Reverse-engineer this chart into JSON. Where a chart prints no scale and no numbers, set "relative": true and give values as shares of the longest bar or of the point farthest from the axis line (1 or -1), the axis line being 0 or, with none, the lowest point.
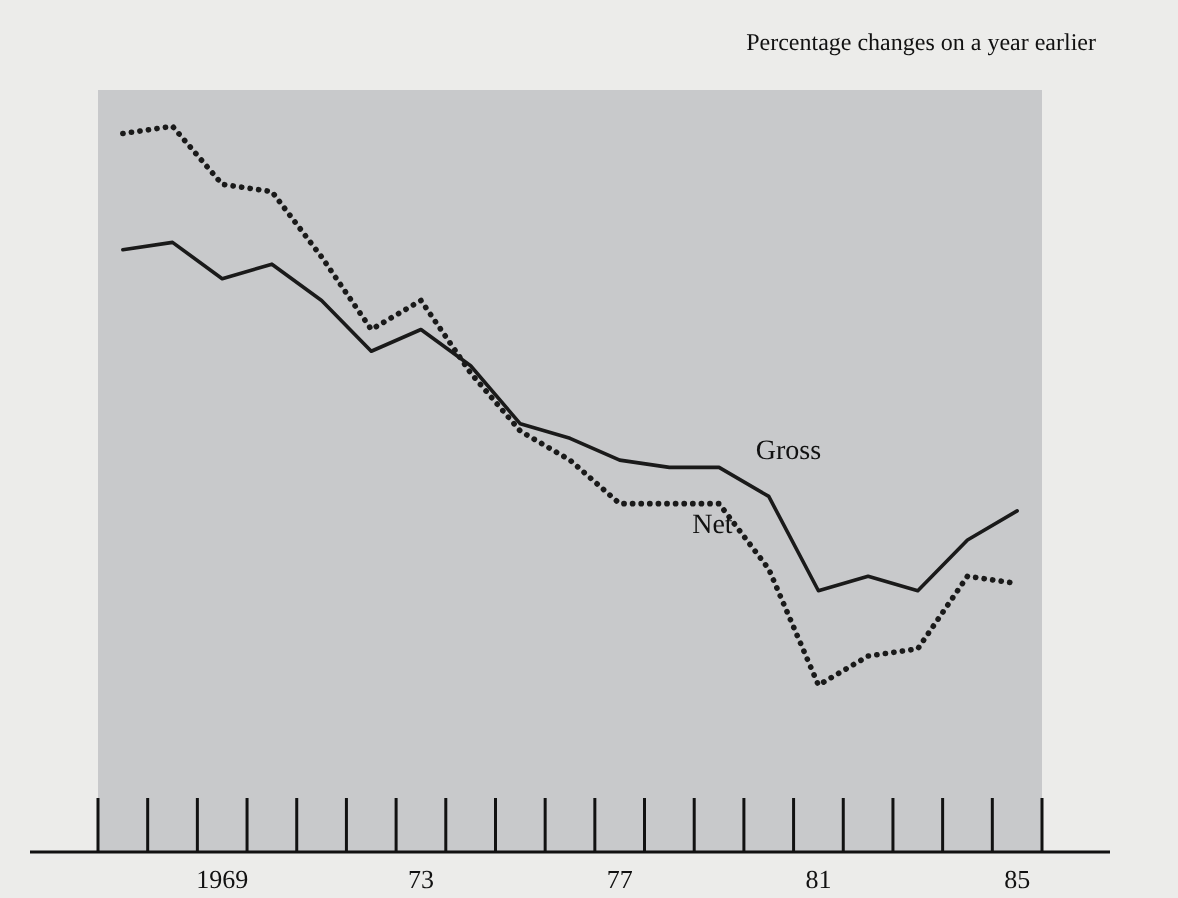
{
  "chart_data": {
    "type": "line",
    "relative": true,
    "ylabel": "Percentage changes on a year earlier",
    "categories": [
      null,
      null,
      "1969",
      null,
      null,
      null,
      "73",
      null,
      null,
      null,
      "77",
      null,
      null,
      null,
      "81",
      null,
      null,
      null,
      "85"
    ],
    "series": [
      {
        "name": "Gross",
        "color": "#1a1a1a",
        "line_style": "solid",
        "values": [
          0.83,
          0.84,
          0.79,
          0.81,
          0.76,
          0.69,
          0.72,
          0.67,
          0.59,
          0.57,
          0.54,
          0.53,
          0.53,
          0.49,
          0.36,
          0.38,
          0.36,
          0.43,
          0.47
        ]
      },
      {
        "name": "Net",
        "color": "#1a1a1a",
        "line_style": "dotted",
        "values": [
          0.99,
          1.0,
          0.92,
          0.91,
          0.82,
          0.72,
          0.76,
          0.66,
          0.58,
          0.54,
          0.48,
          0.48,
          0.48,
          0.39,
          0.23,
          0.27,
          0.28,
          0.38,
          0.37
        ]
      }
    ],
    "marker": "none"
  }
}
